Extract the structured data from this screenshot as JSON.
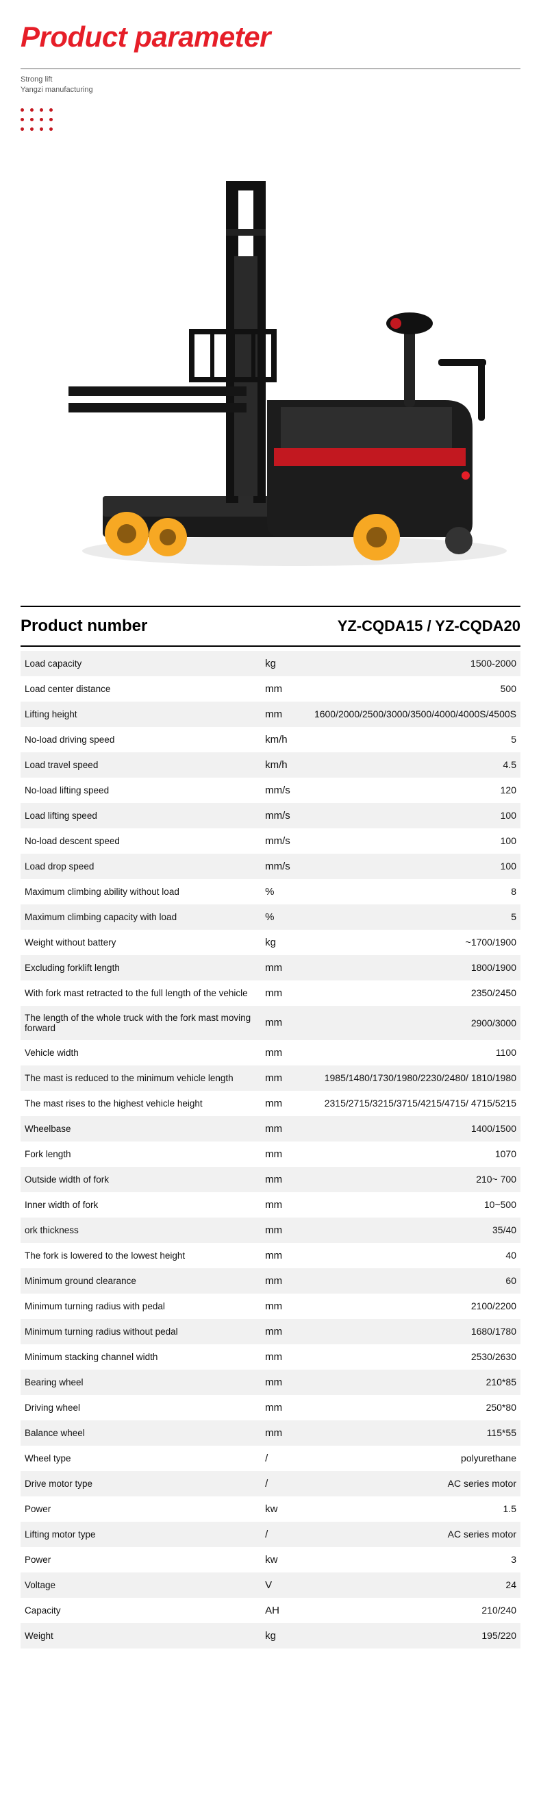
{
  "header": {
    "title": "Product parameter",
    "sub1": "Strong lift",
    "sub2": "Yangzi manufacturing"
  },
  "product_number": {
    "label": "Product number",
    "value": "YZ-CQDA15 / YZ-CQDA20"
  },
  "colors": {
    "accent": "#e61e28",
    "row_alt": "#f1f1f1",
    "text": "#111111"
  },
  "spec_rows": [
    {
      "param": "Load capacity",
      "unit": "kg",
      "value": "1500-2000"
    },
    {
      "param": "Load center distance",
      "unit": "mm",
      "value": "500"
    },
    {
      "param": "Lifting height",
      "unit": "mm",
      "value": "1600/2000/2500/3000/3500/4000/4000S/4500S"
    },
    {
      "param": "No-load driving speed",
      "unit": "km/h",
      "value": "5"
    },
    {
      "param": "Load travel speed",
      "unit": "km/h",
      "value": "4.5"
    },
    {
      "param": "No-load lifting speed",
      "unit": "mm/s",
      "value": "120"
    },
    {
      "param": "Load lifting speed",
      "unit": "mm/s",
      "value": "100"
    },
    {
      "param": "No-load descent speed",
      "unit": "mm/s",
      "value": "100"
    },
    {
      "param": "Load drop speed",
      "unit": "mm/s",
      "value": "100"
    },
    {
      "param": "Maximum climbing ability without load",
      "unit": "%",
      "value": "8"
    },
    {
      "param": "Maximum climbing capacity with load",
      "unit": "%",
      "value": "5"
    },
    {
      "param": "Weight without battery",
      "unit": "kg",
      "value": "~1700/1900"
    },
    {
      "param": "Excluding forklift length",
      "unit": "mm",
      "value": "1800/1900"
    },
    {
      "param": "With fork mast retracted to the full length of the vehicle",
      "unit": "mm",
      "value": "2350/2450"
    },
    {
      "param": "The length of the whole truck with the fork mast moving forward",
      "unit": "mm",
      "value": "2900/3000"
    },
    {
      "param": "Vehicle width",
      "unit": "mm",
      "value": "1100"
    },
    {
      "param": "The mast is reduced to the minimum vehicle length",
      "unit": "mm",
      "value": "1985/1480/1730/1980/2230/2480/ 1810/1980"
    },
    {
      "param": "The mast rises to the highest vehicle height",
      "unit": "mm",
      "value": "2315/2715/3215/3715/4215/4715/ 4715/5215"
    },
    {
      "param": "Wheelbase",
      "unit": "mm",
      "value": "1400/1500"
    },
    {
      "param": "Fork length",
      "unit": "mm",
      "value": "1070"
    },
    {
      "param": "Outside width of fork",
      "unit": "mm",
      "value": "210~ 700"
    },
    {
      "param": "Inner width of fork",
      "unit": "mm",
      "value": "10~500"
    },
    {
      "param": "ork thickness",
      "unit": "mm",
      "value": "35/40"
    },
    {
      "param": "The fork is lowered to the lowest height",
      "unit": "mm",
      "value": "40"
    },
    {
      "param": "Minimum ground clearance",
      "unit": "mm",
      "value": "60"
    },
    {
      "param": "Minimum turning radius with pedal",
      "unit": "mm",
      "value": "2100/2200"
    },
    {
      "param": "Minimum turning radius without pedal",
      "unit": "mm",
      "value": "1680/1780"
    },
    {
      "param": "Minimum stacking channel width",
      "unit": "mm",
      "value": "2530/2630"
    },
    {
      "param": "Bearing wheel",
      "unit": "mm",
      "value": "210*85"
    },
    {
      "param": "Driving wheel",
      "unit": "mm",
      "value": "250*80"
    },
    {
      "param": "Balance wheel",
      "unit": "mm",
      "value": "115*55"
    },
    {
      "param": "Wheel type",
      "unit": "/",
      "value": "polyurethane"
    },
    {
      "param": "Drive motor type",
      "unit": "/",
      "value": "AC series motor"
    },
    {
      "param": "Power",
      "unit": "kw",
      "value": "1.5"
    },
    {
      "param": "Lifting motor type",
      "unit": "/",
      "value": "AC series motor"
    },
    {
      "param": "Power",
      "unit": "kw",
      "value": "3"
    },
    {
      "param": "Voltage",
      "unit": "V",
      "value": "24"
    },
    {
      "param": "Capacity",
      "unit": "AH",
      "value": "210/240"
    },
    {
      "param": "Weight",
      "unit": "kg",
      "value": "195/220"
    }
  ]
}
